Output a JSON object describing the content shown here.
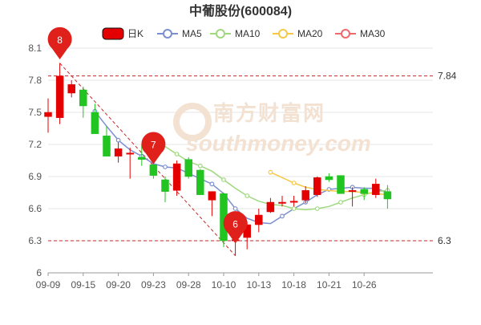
{
  "chart_data": {
    "type": "candlestick",
    "title": "中葡股份(600084)",
    "legend": [
      {
        "name": "日K",
        "color": "#e40000",
        "icon": "filled-rounded-rect"
      },
      {
        "name": "MA5",
        "color": "#7a8fd0",
        "icon": "circle"
      },
      {
        "name": "MA10",
        "color": "#9fd87f",
        "icon": "circle"
      },
      {
        "name": "MA20",
        "color": "#f6c847",
        "icon": "circle"
      },
      {
        "name": "MA30",
        "color": "#ec6a6a",
        "icon": "circle"
      }
    ],
    "x_ticks": [
      "09-09",
      "09-15",
      "09-20",
      "09-23",
      "09-28",
      "10-10",
      "10-13",
      "10-18",
      "10-21",
      "10-26"
    ],
    "x_tick_index": [
      0,
      3,
      6,
      9,
      12,
      15,
      18,
      21,
      24,
      27
    ],
    "y_ticks": [
      6,
      6.3,
      6.6,
      6.9,
      7.2,
      7.5,
      7.8,
      8.1
    ],
    "y_tick_labels": [
      "6",
      "6.3",
      "6.6",
      "6.9",
      "7.2",
      "7.5",
      "7.8",
      "8.1"
    ],
    "ylim": [
      6,
      8.1
    ],
    "grid": true,
    "up_color": "#e40000",
    "down_color": "#21c421",
    "candles": [
      {
        "o": 7.46,
        "c": 7.5,
        "h": 7.63,
        "l": 7.31
      },
      {
        "o": 7.45,
        "c": 7.84,
        "h": 7.96,
        "l": 7.39
      },
      {
        "o": 7.68,
        "c": 7.76,
        "h": 7.8,
        "l": 7.64
      },
      {
        "o": 7.71,
        "c": 7.56,
        "h": 7.74,
        "l": 7.45
      },
      {
        "o": 7.5,
        "c": 7.3,
        "h": 7.58,
        "l": 7.3
      },
      {
        "o": 7.28,
        "c": 7.09,
        "h": 7.37,
        "l": 7.09
      },
      {
        "o": 7.09,
        "c": 7.16,
        "h": 7.22,
        "l": 7.03
      },
      {
        "o": 7.11,
        "c": 7.12,
        "h": 7.17,
        "l": 6.88
      },
      {
        "o": 7.08,
        "c": 7.06,
        "h": 7.2,
        "l": 7.0
      },
      {
        "o": 7.01,
        "c": 6.91,
        "h": 7.02,
        "l": 6.88
      },
      {
        "o": 6.87,
        "c": 6.76,
        "h": 6.9,
        "l": 6.66
      },
      {
        "o": 6.77,
        "c": 7.02,
        "h": 7.05,
        "l": 6.72
      },
      {
        "o": 7.06,
        "c": 6.9,
        "h": 7.08,
        "l": 6.88
      },
      {
        "o": 6.96,
        "c": 6.73,
        "h": 6.97,
        "l": 6.73
      },
      {
        "o": 6.68,
        "c": 6.76,
        "h": 6.76,
        "l": 6.53
      },
      {
        "o": 6.74,
        "c": 6.3,
        "h": 6.75,
        "l": 6.24
      },
      {
        "o": 6.3,
        "c": 6.31,
        "h": 6.37,
        "l": 6.16
      },
      {
        "o": 6.33,
        "c": 6.45,
        "h": 6.48,
        "l": 6.22
      },
      {
        "o": 6.45,
        "c": 6.54,
        "h": 6.6,
        "l": 6.38
      },
      {
        "o": 6.57,
        "c": 6.66,
        "h": 6.7,
        "l": 6.56
      },
      {
        "o": 6.66,
        "c": 6.66,
        "h": 6.72,
        "l": 6.62
      },
      {
        "o": 6.66,
        "c": 6.67,
        "h": 6.72,
        "l": 6.62
      },
      {
        "o": 6.68,
        "c": 6.77,
        "h": 6.81,
        "l": 6.65
      },
      {
        "o": 6.73,
        "c": 6.89,
        "h": 6.9,
        "l": 6.71
      },
      {
        "o": 6.9,
        "c": 6.87,
        "h": 6.93,
        "l": 6.85
      },
      {
        "o": 6.91,
        "c": 6.74,
        "h": 6.91,
        "l": 6.74
      },
      {
        "o": 6.77,
        "c": 6.77,
        "h": 6.8,
        "l": 6.62
      },
      {
        "o": 6.78,
        "c": 6.74,
        "h": 6.8,
        "l": 6.68
      },
      {
        "o": 6.73,
        "c": 6.83,
        "h": 6.88,
        "l": 6.7
      },
      {
        "o": 6.76,
        "c": 6.69,
        "h": 6.82,
        "l": 6.6
      }
    ],
    "ma5": [
      null,
      null,
      null,
      null,
      7.51,
      7.37,
      7.24,
      7.15,
      7.09,
      7.02,
      6.99,
      6.98,
      6.93,
      6.88,
      6.83,
      6.74,
      6.6,
      6.51,
      6.47,
      6.46,
      6.53,
      6.6,
      6.66,
      6.73,
      6.78,
      6.79,
      6.8,
      6.79,
      6.79,
      6.75
    ],
    "ma10": [
      null,
      null,
      null,
      null,
      null,
      null,
      null,
      null,
      null,
      7.25,
      7.18,
      7.11,
      7.04,
      7.0,
      6.95,
      6.87,
      6.79,
      6.72,
      6.67,
      6.64,
      6.63,
      6.6,
      6.59,
      6.6,
      6.62,
      6.66,
      6.7,
      6.73,
      6.76,
      6.77
    ],
    "ma20": [
      null,
      null,
      null,
      null,
      null,
      null,
      null,
      null,
      null,
      null,
      null,
      null,
      null,
      null,
      null,
      null,
      null,
      null,
      null,
      6.94,
      6.89,
      6.84,
      6.8,
      6.78,
      6.77,
      6.76,
      6.76,
      6.75,
      6.74,
      6.73
    ],
    "ref_lines": [
      {
        "value": 7.84,
        "label": "7.84"
      },
      {
        "value": 6.3,
        "label": "6.3"
      }
    ],
    "markers": [
      {
        "index": 1,
        "value": 8.1,
        "label": "8"
      },
      {
        "index": 9,
        "value": 7.12,
        "label": "7"
      },
      {
        "index": 16,
        "value": 6.38,
        "label": "6"
      }
    ],
    "trend_line": {
      "from_index": 1,
      "from_value": 7.96,
      "to_index": 16,
      "to_value": 6.16
    }
  },
  "watermark": {
    "text_cn": "南方财富网",
    "text_en": "southmoney.com"
  }
}
